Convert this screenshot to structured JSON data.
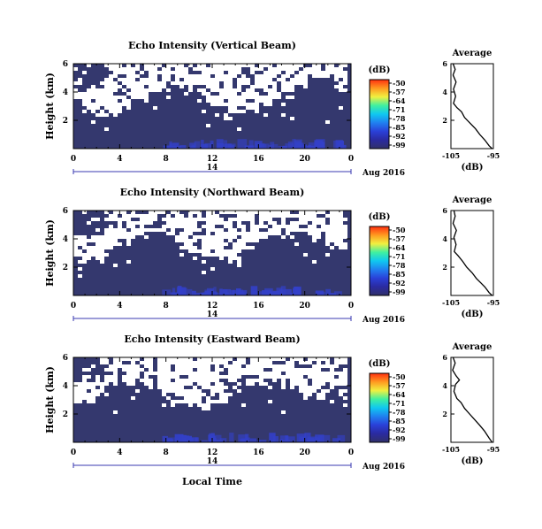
{
  "figure": {
    "xlabel_bottom": "Local Time",
    "colors": {
      "background_echo": "#34386e",
      "low_echo": "#3340c8",
      "missing": "#ffffff"
    }
  },
  "colorbar": {
    "unit_label": "(dB)",
    "ticks": [
      "-50",
      "-57",
      "-64",
      "-71",
      "-78",
      "-85",
      "-92",
      "-99"
    ],
    "colors": [
      "#ff3010",
      "#ff9a20",
      "#f0f040",
      "#40f0a0",
      "#10c8f0",
      "#2080f0",
      "#2a40d8",
      "#2a2aa0",
      "#30306a"
    ]
  },
  "chart_data": [
    {
      "type": "heatmap",
      "title": "Echo Intensity (Vertical Beam)",
      "ylabel": "Height (km)",
      "x_ticks": [
        "0",
        "4",
        "8",
        "12",
        "16",
        "20",
        "0"
      ],
      "xlim": [
        0,
        24
      ],
      "y_ticks": [
        "6",
        "4",
        "2"
      ],
      "ylim": [
        0,
        6
      ],
      "date_label": "14",
      "month_label": "Aug 2016",
      "colorbar_range_db": [
        -99,
        -50
      ],
      "average_profile": {
        "title": "Average",
        "xlabel": "(dB)",
        "x_ticks": [
          "-105",
          "-95"
        ],
        "y_ticks": [
          "6",
          "4",
          "2"
        ],
        "xlim": [
          -105,
          -95
        ],
        "ylim": [
          0,
          6
        ],
        "points": [
          [
            -104.5,
            6.0
          ],
          [
            -104.0,
            5.6
          ],
          [
            -104.5,
            5.2
          ],
          [
            -103.8,
            4.7
          ],
          [
            -104.4,
            4.2
          ],
          [
            -103.9,
            3.7
          ],
          [
            -104.4,
            3.2
          ],
          [
            -103.6,
            2.9
          ],
          [
            -102.5,
            2.6
          ],
          [
            -101.8,
            2.2
          ],
          [
            -100.5,
            1.8
          ],
          [
            -99.2,
            1.4
          ],
          [
            -98.2,
            1.0
          ],
          [
            -97.0,
            0.6
          ],
          [
            -96.0,
            0.2
          ],
          [
            -95.3,
            0.0
          ]
        ]
      }
    },
    {
      "type": "heatmap",
      "title": "Echo Intensity (Northward Beam)",
      "ylabel": "Height (km)",
      "x_ticks": [
        "0",
        "4",
        "8",
        "12",
        "16",
        "20",
        "0"
      ],
      "xlim": [
        0,
        24
      ],
      "y_ticks": [
        "6",
        "4",
        "2"
      ],
      "ylim": [
        0,
        6
      ],
      "date_label": "14",
      "month_label": "Aug 2016",
      "colorbar_range_db": [
        -99,
        -50
      ],
      "average_profile": {
        "title": "Average",
        "xlabel": "(dB)",
        "x_ticks": [
          "-105",
          "-95"
        ],
        "y_ticks": [
          "6",
          "4",
          "2"
        ],
        "xlim": [
          -105,
          -95
        ],
        "ylim": [
          0,
          6
        ],
        "points": [
          [
            -104.3,
            6.0
          ],
          [
            -104.0,
            5.6
          ],
          [
            -104.5,
            5.1
          ],
          [
            -103.7,
            4.6
          ],
          [
            -104.3,
            4.1
          ],
          [
            -103.8,
            3.6
          ],
          [
            -104.2,
            3.1
          ],
          [
            -103.3,
            2.8
          ],
          [
            -102.2,
            2.4
          ],
          [
            -101.3,
            2.0
          ],
          [
            -100.0,
            1.6
          ],
          [
            -99.0,
            1.2
          ],
          [
            -98.0,
            0.9
          ],
          [
            -97.0,
            0.6
          ],
          [
            -96.0,
            0.2
          ],
          [
            -95.3,
            0.0
          ]
        ]
      }
    },
    {
      "type": "heatmap",
      "title": "Echo Intensity (Eastward Beam)",
      "ylabel": "Height (km)",
      "x_ticks": [
        "0",
        "4",
        "8",
        "12",
        "16",
        "20",
        "0"
      ],
      "xlim": [
        0,
        24
      ],
      "y_ticks": [
        "6",
        "4",
        "2"
      ],
      "ylim": [
        0,
        6
      ],
      "date_label": "14",
      "month_label": "Aug 2016",
      "colorbar_range_db": [
        -99,
        -50
      ],
      "average_profile": {
        "title": "Average",
        "xlabel": "(dB)",
        "x_ticks": [
          "-105",
          "-95"
        ],
        "y_ticks": [
          "6",
          "4",
          "2"
        ],
        "xlim": [
          -105,
          -95
        ],
        "ylim": [
          0,
          6
        ],
        "points": [
          [
            -104.5,
            6.0
          ],
          [
            -104.0,
            5.6
          ],
          [
            -104.6,
            5.1
          ],
          [
            -103.8,
            4.7
          ],
          [
            -103.0,
            4.4
          ],
          [
            -103.9,
            4.1
          ],
          [
            -104.3,
            3.6
          ],
          [
            -103.6,
            3.1
          ],
          [
            -102.6,
            2.8
          ],
          [
            -101.8,
            2.4
          ],
          [
            -100.6,
            2.0
          ],
          [
            -99.4,
            1.6
          ],
          [
            -98.2,
            1.2
          ],
          [
            -97.1,
            0.8
          ],
          [
            -96.0,
            0.3
          ],
          [
            -95.3,
            0.0
          ]
        ]
      }
    }
  ]
}
